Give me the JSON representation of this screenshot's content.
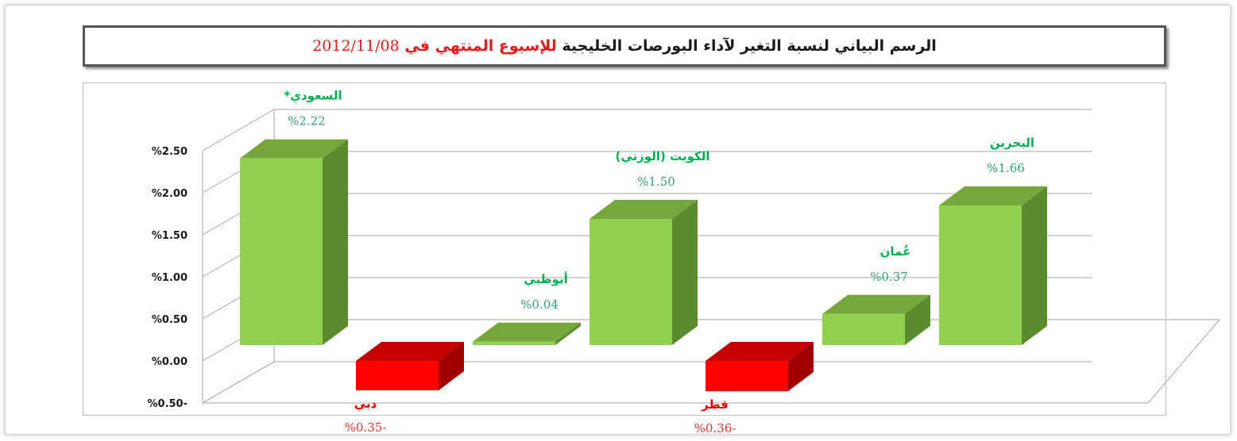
{
  "title": {
    "main": "الرسم البياني لنسبة التغير لآداء البورصات الخليجية",
    "highlight": "للإسبوع المنتهي في",
    "date": "2012/11/08"
  },
  "chart_data": {
    "type": "bar",
    "style": "3d-columns",
    "title": "الرسم البياني لنسبة التغير لآداء البورصات الخليجية للإسبوع المنتهي في 2012/11/08",
    "categories": [
      "السعودي*",
      "دبي",
      "أبوظبي",
      "الكويت (الوزني)",
      "قطر",
      "عُمان",
      "البحرين"
    ],
    "values": [
      2.22,
      -0.35,
      0.04,
      1.5,
      -0.36,
      0.37,
      1.66
    ],
    "value_labels": [
      "%2.22",
      "%0.35-",
      "%0.04",
      "%1.50",
      "%0.36-",
      "%0.37",
      "%1.66"
    ],
    "y_ticks": [
      -0.5,
      0.0,
      0.5,
      1.0,
      1.5,
      2.0,
      2.5
    ],
    "y_tick_labels": [
      "%0.50-",
      "%0.00",
      "%0.50",
      "%1.00",
      "%1.50",
      "%2.00",
      "%2.50"
    ],
    "ylim": [
      -0.5,
      2.5
    ],
    "grid": true,
    "legend": "none",
    "colors": {
      "positive_front": "#92d050",
      "positive_top": "#76a63c",
      "positive_side": "#5c8a2e",
      "negative_front": "#ff0000",
      "negative_top": "#c40000",
      "negative_side": "#a00000",
      "positive_text": "#00b050",
      "positive_value_text": "#33a070",
      "negative_text": "#e00000",
      "negative_value_text": "#e03030",
      "grid": "#a6a6a6"
    }
  }
}
